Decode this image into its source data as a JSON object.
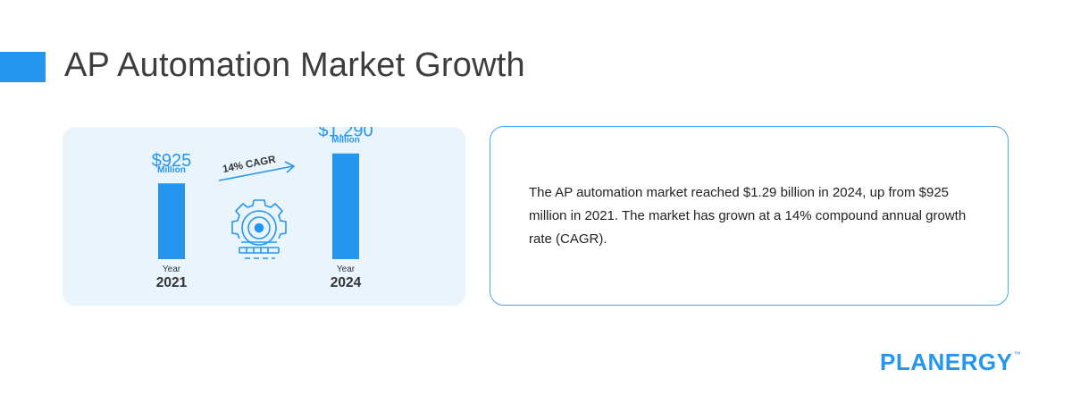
{
  "header": {
    "title": "AP Automation Market Growth"
  },
  "chart_data": {
    "type": "bar",
    "categories": [
      "2021",
      "2024"
    ],
    "category_prefix": "Year",
    "values": [
      925,
      1290
    ],
    "value_labels": [
      "$925",
      "$1,290"
    ],
    "unit_label": "Million",
    "annotation": "14% CAGR",
    "colors": {
      "bar": "#2596f0",
      "card_bg": "#eaf4fd",
      "text_dark": "#333333"
    },
    "icon": "gear-icon"
  },
  "summary": {
    "text": "The AP automation market reached $1.29 billion in 2024, up from $925 million in 2021. The market has grown at a 14% compound annual growth rate (CAGR)."
  },
  "brand": {
    "name": "PLANERGY",
    "trademark": "™"
  }
}
